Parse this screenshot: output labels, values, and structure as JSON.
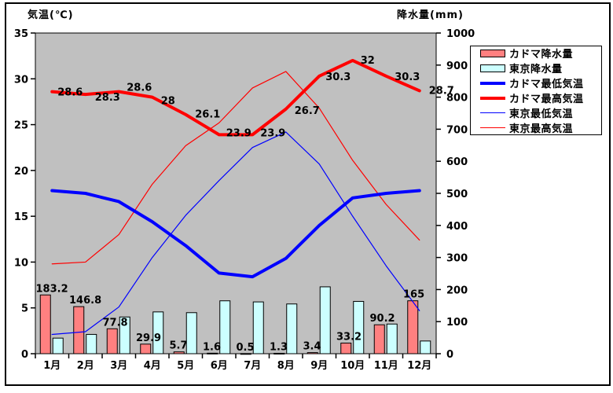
{
  "chart_data": {
    "type": "combo-bar-line",
    "title": "",
    "categories": [
      "1月",
      "2月",
      "3月",
      "4月",
      "5月",
      "6月",
      "7月",
      "8月",
      "9月",
      "10月",
      "11月",
      "12月"
    ],
    "left_axis": {
      "label": "気温(℃)",
      "min": 0,
      "max": 35,
      "step": 5
    },
    "right_axis": {
      "label": "降水量(mm)",
      "min": 0,
      "max": 1000,
      "step": 100
    },
    "plot_background": "#C0C0C0",
    "grid": false,
    "legend_position": "right",
    "series": [
      {
        "id": "kadoma-precip",
        "name": "カドマ降水量",
        "type": "bar",
        "axis": "right",
        "color": "#FF8080",
        "border_color": "#000000",
        "values": [
          183.2,
          146.8,
          77.8,
          29.9,
          5.7,
          1.6,
          0.5,
          1.3,
          3.4,
          33.2,
          90.2,
          165
        ],
        "data_labels": true
      },
      {
        "id": "tokyo-precip",
        "name": "東京降水量",
        "type": "bar",
        "axis": "right",
        "color": "#CCFFFF",
        "border_color": "#000000",
        "values": [
          48.6,
          60.2,
          114.5,
          130.3,
          128,
          164.9,
          161.5,
          155.1,
          208.5,
          163.1,
          92.5,
          39.6
        ],
        "data_labels": false
      },
      {
        "id": "kadoma-min-temp",
        "name": "カドマ最低気温",
        "type": "line",
        "axis": "left",
        "color": "#0000FF",
        "width": 4,
        "values": [
          17.8,
          17.5,
          16.6,
          14.4,
          11.8,
          8.8,
          8.4,
          10.4,
          14,
          17,
          17.5,
          17.8
        ],
        "data_labels": false
      },
      {
        "id": "kadoma-max-temp",
        "name": "カドマ最高気温",
        "type": "line",
        "axis": "left",
        "color": "#FF0000",
        "width": 4,
        "values": [
          28.6,
          28.3,
          28.6,
          28,
          26.1,
          23.9,
          23.9,
          26.7,
          30.3,
          32,
          30.3,
          28.7
        ],
        "data_labels": true
      },
      {
        "id": "tokyo-min-temp",
        "name": "東京最低気温",
        "type": "line",
        "axis": "left",
        "color": "#0000FF",
        "width": 1.2,
        "values": [
          2.1,
          2.4,
          5.1,
          10.5,
          15.1,
          18.9,
          22.5,
          24.2,
          20.7,
          15,
          9.6,
          4.7
        ],
        "data_labels": false
      },
      {
        "id": "tokyo-max-temp",
        "name": "東京最高気温",
        "type": "line",
        "axis": "left",
        "color": "#FF0000",
        "width": 1.2,
        "values": [
          9.8,
          10,
          13,
          18.5,
          22.7,
          25.2,
          29,
          30.8,
          26.8,
          21.1,
          16.3,
          12.4
        ],
        "data_labels": false
      }
    ]
  }
}
